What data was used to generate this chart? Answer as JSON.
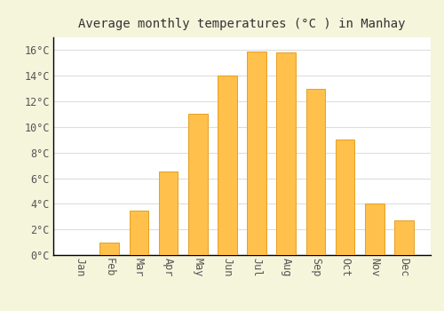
{
  "title": "Average monthly temperatures (°C ) in Manhay",
  "months": [
    "Jan",
    "Feb",
    "Mar",
    "Apr",
    "May",
    "Jun",
    "Jul",
    "Aug",
    "Sep",
    "Oct",
    "Nov",
    "Dec"
  ],
  "values": [
    0,
    1.0,
    3.5,
    6.5,
    11.0,
    14.0,
    15.9,
    15.8,
    13.0,
    9.0,
    4.0,
    2.7
  ],
  "bar_color": "#FFC04C",
  "bar_edge_color": "#E8A020",
  "plot_bg_color": "#FFFFFF",
  "fig_bg_color": "#F5F5DC",
  "grid_color": "#DDDDDD",
  "ylim": [
    0,
    17
  ],
  "yticks": [
    0,
    2,
    4,
    6,
    8,
    10,
    12,
    14,
    16
  ],
  "ytick_labels": [
    "0°C",
    "2°C",
    "4°C",
    "6°C",
    "8°C",
    "10°C",
    "12°C",
    "14°C",
    "16°C"
  ],
  "title_fontsize": 10,
  "tick_fontsize": 8.5
}
